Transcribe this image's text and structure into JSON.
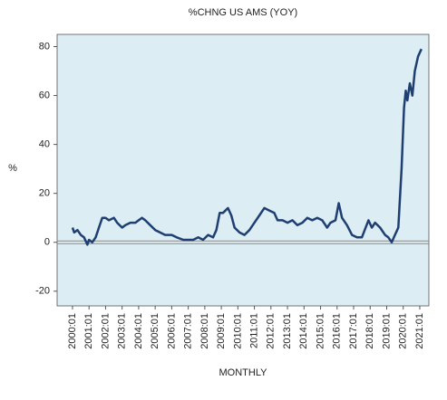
{
  "chart_data": {
    "type": "line",
    "title": "%CHNG US AMS (YOY)",
    "xlabel": "MONTHLY",
    "ylabel": "%",
    "xlim": [
      1999.07,
      2021.55
    ],
    "ylim": [
      -26,
      85
    ],
    "yticks": [
      -20,
      0,
      20,
      40,
      60,
      80
    ],
    "xticks": [
      {
        "value": 2000,
        "label": "2000:01"
      },
      {
        "value": 2001,
        "label": "2001:01"
      },
      {
        "value": 2002,
        "label": "2002:01"
      },
      {
        "value": 2003,
        "label": "2003:01"
      },
      {
        "value": 2004,
        "label": "2004:01"
      },
      {
        "value": 2005,
        "label": "2005:01"
      },
      {
        "value": 2006,
        "label": "2006:01"
      },
      {
        "value": 2007,
        "label": "2007:01"
      },
      {
        "value": 2008,
        "label": "2008:01"
      },
      {
        "value": 2009,
        "label": "2009:01"
      },
      {
        "value": 2010,
        "label": "2010:01"
      },
      {
        "value": 2011,
        "label": "2011:01"
      },
      {
        "value": 2012,
        "label": "2012:01"
      },
      {
        "value": 2013,
        "label": "2013:01"
      },
      {
        "value": 2014,
        "label": "2014:01"
      },
      {
        "value": 2015,
        "label": "2015:01"
      },
      {
        "value": 2016,
        "label": "2016:01"
      },
      {
        "value": 2017,
        "label": "2017:01"
      },
      {
        "value": 2018,
        "label": "2018:01"
      },
      {
        "value": 2019,
        "label": "2019:01"
      },
      {
        "value": 2020,
        "label": "2020:01"
      },
      {
        "value": 2021,
        "label": "2021:01"
      }
    ],
    "background": "#dcedf3",
    "series": [
      {
        "color": "#1f3f73",
        "x": [
          2000.0,
          2000.1,
          2000.3,
          2000.5,
          2000.7,
          2000.9,
          2001.0,
          2001.2,
          2001.4,
          2001.6,
          2001.8,
          2002.0,
          2002.2,
          2002.5,
          2002.7,
          2003.0,
          2003.2,
          2003.5,
          2003.8,
          2004.0,
          2004.2,
          2004.4,
          2004.7,
          2005.0,
          2005.3,
          2005.6,
          2006.0,
          2006.3,
          2006.7,
          2007.0,
          2007.3,
          2007.6,
          2007.9,
          2008.2,
          2008.5,
          2008.7,
          2008.9,
          2009.1,
          2009.4,
          2009.6,
          2009.8,
          2010.1,
          2010.4,
          2010.7,
          2011.0,
          2011.3,
          2011.6,
          2011.9,
          2012.2,
          2012.4,
          2012.7,
          2013.0,
          2013.3,
          2013.6,
          2013.9,
          2014.2,
          2014.5,
          2014.8,
          2015.1,
          2015.4,
          2015.6,
          2015.9,
          2016.1,
          2016.3,
          2016.6,
          2016.9,
          2017.2,
          2017.5,
          2017.9,
          2018.1,
          2018.3,
          2018.6,
          2018.9,
          2019.1,
          2019.3,
          2019.5,
          2019.7,
          2019.9,
          2020.05,
          2020.15,
          2020.25,
          2020.4,
          2020.55,
          2020.7,
          2020.9,
          2021.1
        ],
        "values": [
          6,
          4,
          5,
          3,
          2,
          -1,
          1,
          0,
          2,
          6,
          10,
          10,
          9,
          10,
          8,
          6,
          7,
          8,
          8,
          9,
          10,
          9,
          7,
          5,
          4,
          3,
          3,
          2,
          1,
          1,
          1,
          2,
          1,
          3,
          2,
          5,
          12,
          12,
          14,
          11,
          6,
          4,
          3,
          5,
          8,
          11,
          14,
          13,
          12,
          9,
          9,
          8,
          9,
          7,
          8,
          10,
          9,
          10,
          9,
          6,
          8,
          9,
          16,
          10,
          7,
          3,
          2,
          2,
          9,
          6,
          8,
          6,
          3,
          2,
          0,
          3,
          6,
          30,
          55,
          62,
          58,
          65,
          60,
          70,
          76,
          79
        ]
      }
    ]
  }
}
